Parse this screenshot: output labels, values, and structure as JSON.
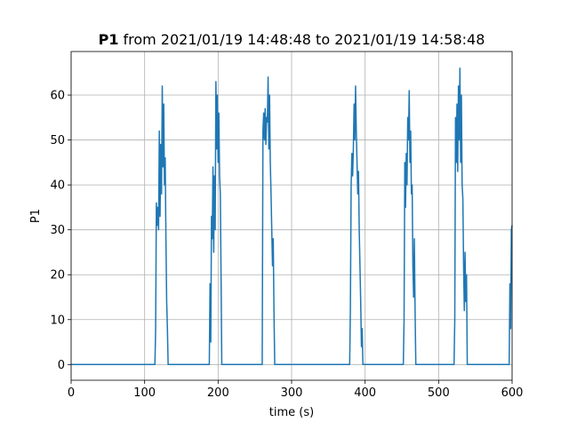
{
  "chart_data": {
    "type": "line",
    "title_parts": [
      "P1",
      "from 2021/01/19 14:48:48 to 2021/01/19 14:58:48"
    ],
    "xlabel": "time (s)",
    "ylabel": "P1",
    "xlim": [
      0,
      600
    ],
    "xticks": [
      0,
      100,
      200,
      300,
      400,
      500,
      600
    ],
    "ylim": [
      -3.5,
      69.7
    ],
    "yticks": [
      0,
      10,
      20,
      30,
      40,
      50,
      60
    ],
    "grid": true,
    "series": [
      {
        "name": "P1",
        "color": "#1f77b4",
        "x": [
          0,
          114,
          115,
          116,
          117,
          118,
          119,
          120,
          121,
          122,
          123,
          124,
          125,
          126,
          127,
          128,
          129,
          130,
          131,
          132,
          188,
          189,
          190,
          191,
          192,
          193,
          194,
          195,
          196,
          197,
          198,
          199,
          200,
          201,
          202,
          203,
          204,
          205,
          260,
          261,
          262,
          263,
          264,
          265,
          266,
          267,
          268,
          269,
          270,
          271,
          272,
          273,
          274,
          275,
          276,
          277,
          379,
          380,
          381,
          382,
          383,
          384,
          385,
          386,
          387,
          388,
          389,
          390,
          391,
          392,
          393,
          394,
          395,
          396,
          397,
          452,
          453,
          454,
          455,
          456,
          457,
          458,
          459,
          460,
          461,
          462,
          463,
          464,
          465,
          466,
          467,
          468,
          469,
          521,
          522,
          523,
          524,
          525,
          526,
          527,
          528,
          529,
          530,
          531,
          532,
          533,
          534,
          535,
          536,
          537,
          538,
          539,
          596,
          597,
          598,
          599,
          600
        ],
        "values": [
          0,
          0,
          8,
          36,
          31,
          35,
          30,
          52,
          33,
          49,
          38,
          62,
          44,
          58,
          40,
          46,
          28,
          14,
          8,
          0,
          0,
          18,
          5,
          33,
          28,
          44,
          25,
          42,
          30,
          63,
          48,
          60,
          45,
          56,
          42,
          38,
          20,
          0,
          0,
          52,
          56,
          50,
          57,
          49,
          55,
          54,
          64,
          48,
          60,
          45,
          38,
          30,
          22,
          28,
          12,
          0,
          0,
          13,
          40,
          47,
          42,
          48,
          58,
          50,
          62,
          52,
          45,
          38,
          43,
          30,
          22,
          14,
          4,
          8,
          0,
          0,
          10,
          45,
          35,
          47,
          40,
          55,
          50,
          61,
          45,
          52,
          38,
          40,
          22,
          15,
          28,
          12,
          0,
          0,
          10,
          55,
          45,
          58,
          43,
          62,
          50,
          66,
          45,
          60,
          40,
          37,
          22,
          12,
          25,
          14,
          20,
          0,
          0,
          18,
          8,
          30,
          31
        ]
      }
    ]
  }
}
